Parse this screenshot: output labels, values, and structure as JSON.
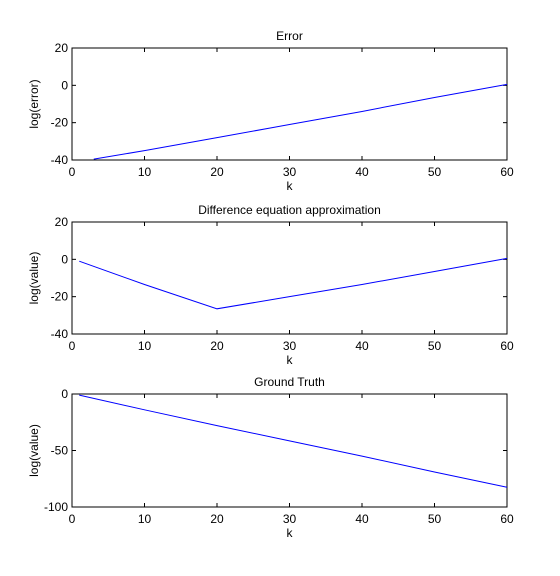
{
  "chart_data": [
    {
      "type": "line",
      "title": "Error",
      "xlabel": "k",
      "ylabel": "log(error)",
      "xlim": [
        0,
        60
      ],
      "ylim": [
        -40,
        20
      ],
      "xticks": [
        0,
        10,
        20,
        30,
        40,
        50,
        60
      ],
      "xtick_labels": [
        "0",
        "10",
        "20",
        "30",
        "40",
        "50",
        "60"
      ],
      "yticks": [
        20,
        0,
        -20,
        -40
      ],
      "ytick_labels": [
        "20",
        "0",
        "-20",
        "-40"
      ],
      "grid": false,
      "series": [
        {
          "x": [
            3,
            10,
            20,
            30,
            40,
            50,
            60
          ],
          "y": [
            -39.5,
            -35,
            -28,
            -21,
            -14,
            -6.5,
            0.5
          ]
        }
      ]
    },
    {
      "type": "line",
      "title": "Difference equation approximation",
      "xlabel": "k",
      "ylabel": "log(value)",
      "xlim": [
        0,
        60
      ],
      "ylim": [
        -40,
        20
      ],
      "xticks": [
        0,
        10,
        20,
        30,
        40,
        50,
        60
      ],
      "xtick_labels": [
        "0",
        "10",
        "20",
        "30",
        "40",
        "50",
        "60"
      ],
      "yticks": [
        20,
        0,
        -20,
        -40
      ],
      "ytick_labels": [
        "20",
        "0",
        "-20",
        "-40"
      ],
      "grid": false,
      "series": [
        {
          "x": [
            1,
            10,
            20,
            30,
            40,
            50,
            60
          ],
          "y": [
            -1,
            -13.5,
            -26.5,
            -20,
            -13.5,
            -6.5,
            0.5
          ]
        }
      ]
    },
    {
      "type": "line",
      "title": "Ground Truth",
      "xlabel": "k",
      "ylabel": "log(value)",
      "xlim": [
        0,
        60
      ],
      "ylim": [
        -100,
        0
      ],
      "xticks": [
        0,
        10,
        20,
        30,
        40,
        50,
        60
      ],
      "xtick_labels": [
        "0",
        "10",
        "20",
        "30",
        "40",
        "50",
        "60"
      ],
      "yticks": [
        0,
        -50,
        -100
      ],
      "ytick_labels": [
        "0",
        "-50",
        "-100"
      ],
      "grid": false,
      "series": [
        {
          "x": [
            1,
            10,
            20,
            30,
            40,
            50,
            60
          ],
          "y": [
            -1,
            -14,
            -28,
            -41.5,
            -55,
            -69,
            -82.5
          ]
        }
      ]
    }
  ],
  "colors": {
    "line": "#0000ff",
    "axes": "#000000",
    "background": "#ffffff"
  }
}
